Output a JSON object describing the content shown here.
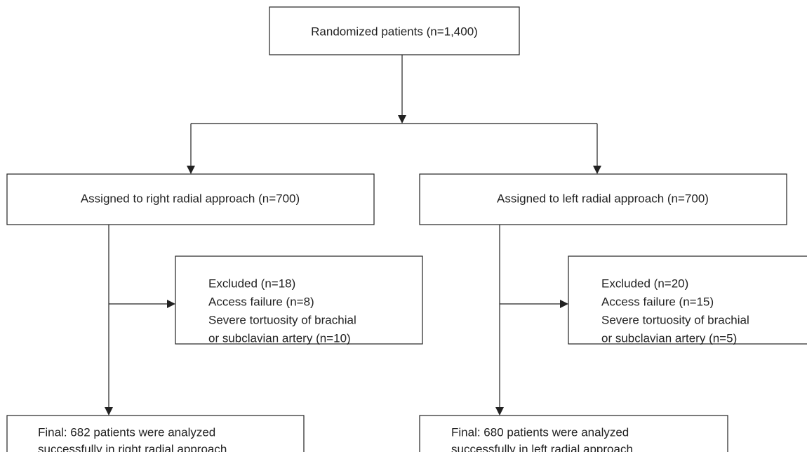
{
  "nodes": [
    {
      "lines": [
        "Randomized patients (n=1,400)"
      ]
    },
    {
      "lines": [
        "Assigned to right radial approach (n=700)"
      ]
    },
    {
      "lines": [
        "Assigned to left radial approach (n=700)"
      ]
    },
    {
      "lines": [
        "Excluded (n=18)",
        "Access failure (n=8)",
        "Severe tortuosity of brachial",
        "or subclavian artery (n=10)"
      ]
    },
    {
      "lines": [
        "Excluded (n=20)",
        "Access failure (n=15)",
        "Severe tortuosity of brachial",
        "or subclavian artery (n=5)"
      ]
    },
    {
      "lines": [
        "Final: 682 patients were analyzed",
        "successfully in right radial approach"
      ]
    },
    {
      "lines": [
        "Final: 680 patients were analyzed",
        "successfully in left radial approach"
      ]
    }
  ]
}
